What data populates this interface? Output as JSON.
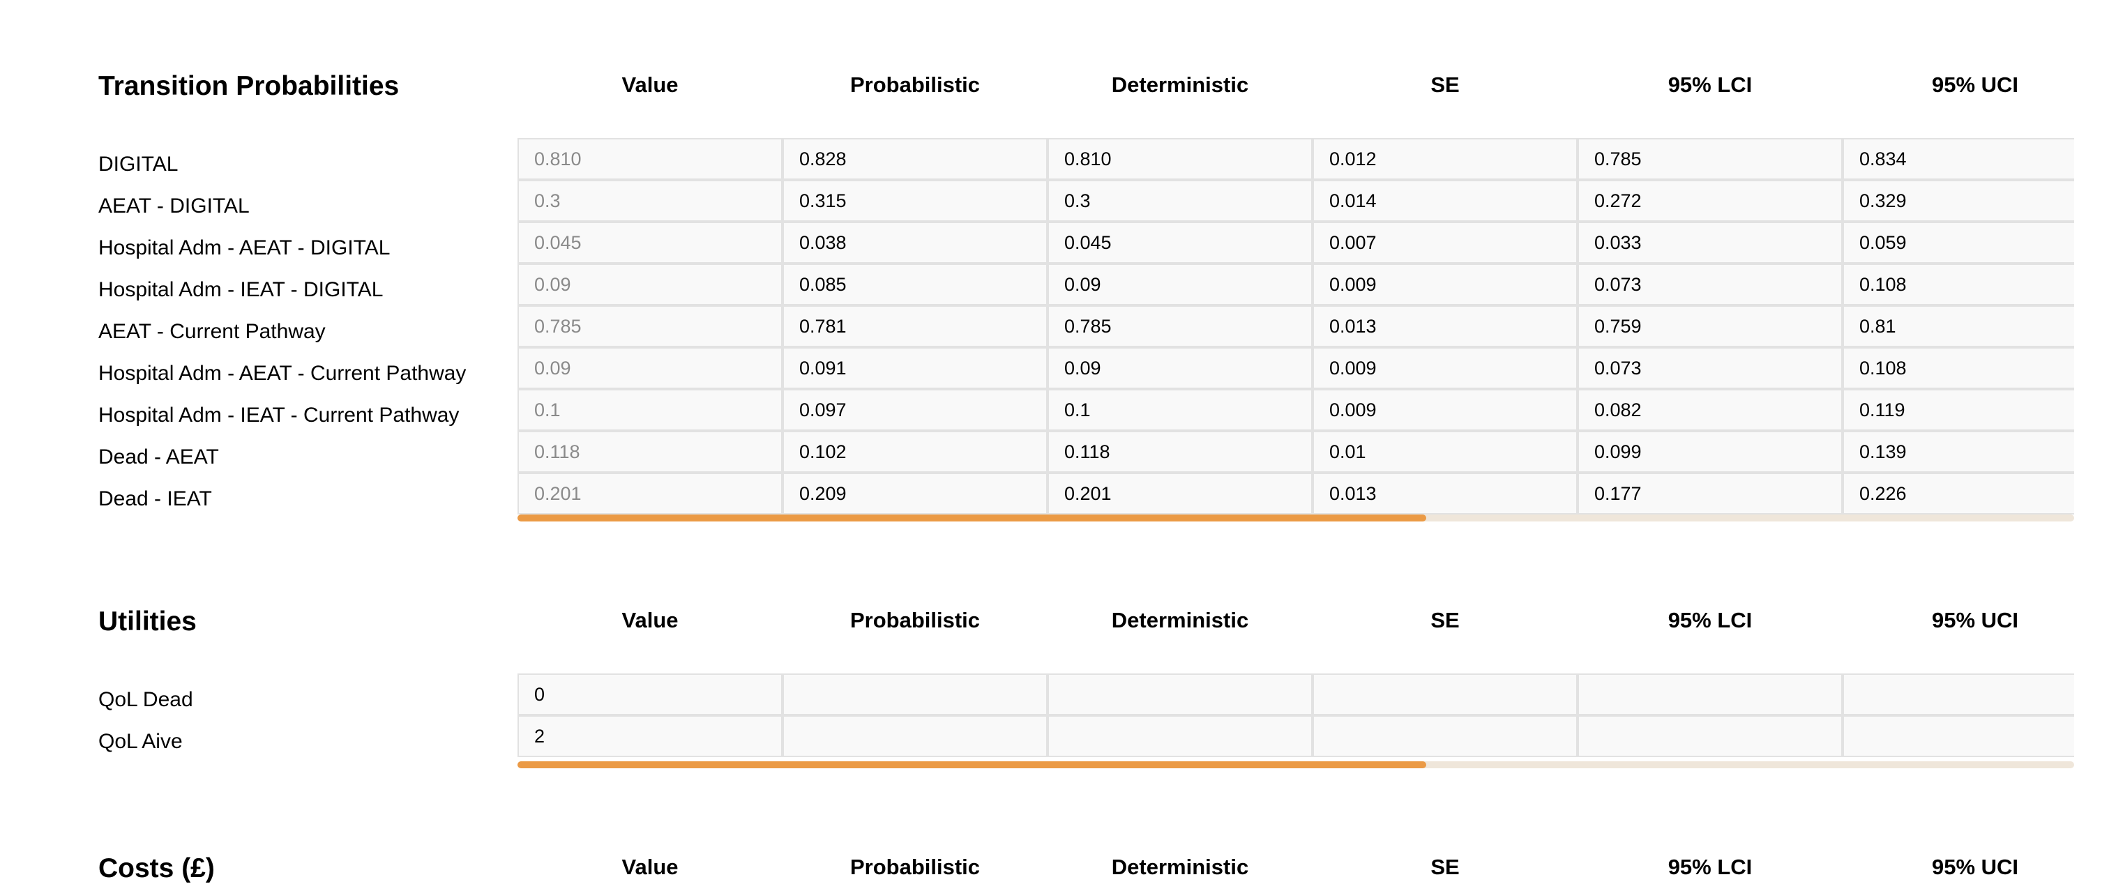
{
  "columns": [
    "Value",
    "Probabilistic",
    "Deterministic",
    "SE",
    "95% LCI",
    "95% UCI"
  ],
  "transition": {
    "title": "Transition Probabilities",
    "rows": [
      {
        "label": "DIGITAL",
        "value": "0.810",
        "probabilistic": "0.828",
        "deterministic": "0.810",
        "se": "0.012",
        "lci": "0.785",
        "uci": "0.834"
      },
      {
        "label": "AEAT - DIGITAL",
        "value": "0.3",
        "probabilistic": "0.315",
        "deterministic": "0.3",
        "se": "0.014",
        "lci": "0.272",
        "uci": "0.329"
      },
      {
        "label": "Hospital Adm - AEAT - DIGITAL",
        "value": "0.045",
        "probabilistic": "0.038",
        "deterministic": "0.045",
        "se": "0.007",
        "lci": "0.033",
        "uci": "0.059"
      },
      {
        "label": "Hospital Adm - IEAT - DIGITAL",
        "value": "0.09",
        "probabilistic": "0.085",
        "deterministic": "0.09",
        "se": "0.009",
        "lci": "0.073",
        "uci": "0.108"
      },
      {
        "label": "AEAT - Current Pathway",
        "value": "0.785",
        "probabilistic": "0.781",
        "deterministic": "0.785",
        "se": "0.013",
        "lci": "0.759",
        "uci": "0.81"
      },
      {
        "label": "Hospital Adm - AEAT - Current Pathway",
        "value": "0.09",
        "probabilistic": "0.091",
        "deterministic": "0.09",
        "se": "0.009",
        "lci": "0.073",
        "uci": "0.108"
      },
      {
        "label": "Hospital Adm - IEAT - Current Pathway",
        "value": "0.1",
        "probabilistic": "0.097",
        "deterministic": "0.1",
        "se": "0.009",
        "lci": "0.082",
        "uci": "0.119"
      },
      {
        "label": "Dead - AEAT",
        "value": "0.118",
        "probabilistic": "0.102",
        "deterministic": "0.118",
        "se": "0.01",
        "lci": "0.099",
        "uci": "0.139"
      },
      {
        "label": "Dead - IEAT",
        "value": "0.201",
        "probabilistic": "0.209",
        "deterministic": "0.201",
        "se": "0.013",
        "lci": "0.177",
        "uci": "0.226"
      }
    ],
    "scroll_fraction": 0.584
  },
  "utilities": {
    "title": "Utilities",
    "rows": [
      {
        "label": "QoL Dead",
        "value": "0",
        "probabilistic": "",
        "deterministic": "",
        "se": "",
        "lci": "",
        "uci": ""
      },
      {
        "label": "QoL Aive",
        "value": "2",
        "probabilistic": "",
        "deterministic": "",
        "se": "",
        "lci": "",
        "uci": ""
      }
    ],
    "scroll_fraction": 0.584
  },
  "costs": {
    "title": "Costs (£)"
  },
  "colors": {
    "scroll_thumb": "#eb9a45",
    "scroll_track": "#efe6da",
    "cell_border": "#e2e2e2",
    "cell_bg": "#f9f9f9",
    "muted_value": "#8a8a8a"
  }
}
